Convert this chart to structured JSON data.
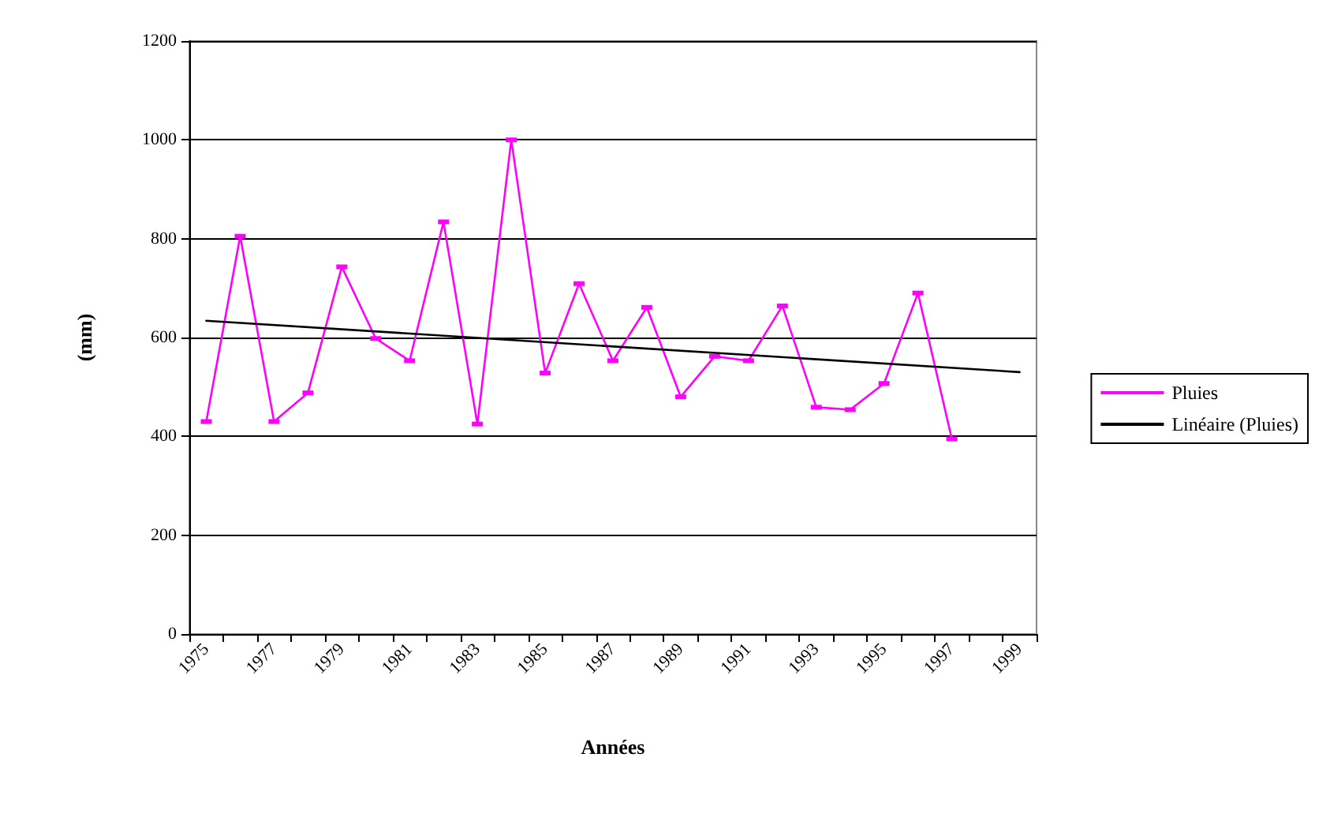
{
  "chart_data": {
    "type": "line",
    "xlabel": "Années",
    "ylabel": "(mm)",
    "categories": [
      "1975",
      null,
      "1977",
      null,
      "1979",
      null,
      "1981",
      null,
      "1983",
      null,
      "1985",
      null,
      "1987",
      null,
      "1989",
      null,
      "1991",
      null,
      "1993",
      null,
      "1995",
      null,
      "1997",
      null,
      "1999"
    ],
    "series": [
      {
        "name": "Pluies",
        "color": "#ff00ff",
        "marker": "square",
        "values": [
          430,
          805,
          430,
          488,
          743,
          598,
          553,
          834,
          425,
          1000,
          528,
          709,
          553,
          661,
          480,
          562,
          553,
          664,
          459,
          454,
          507,
          690,
          395,
          null,
          null
        ]
      },
      {
        "name": "Linéaire (Pluies)",
        "color": "#000000",
        "marker": "none",
        "values": [
          634,
          null,
          null,
          null,
          null,
          null,
          null,
          null,
          null,
          null,
          null,
          null,
          null,
          null,
          null,
          null,
          null,
          null,
          null,
          null,
          null,
          null,
          null,
          null,
          530
        ]
      }
    ],
    "ylim": [
      0,
      1200
    ],
    "yticks": [
      0,
      200,
      400,
      600,
      800,
      1000,
      1200
    ],
    "grid": "y",
    "legend": "right",
    "line_style": "solid"
  }
}
